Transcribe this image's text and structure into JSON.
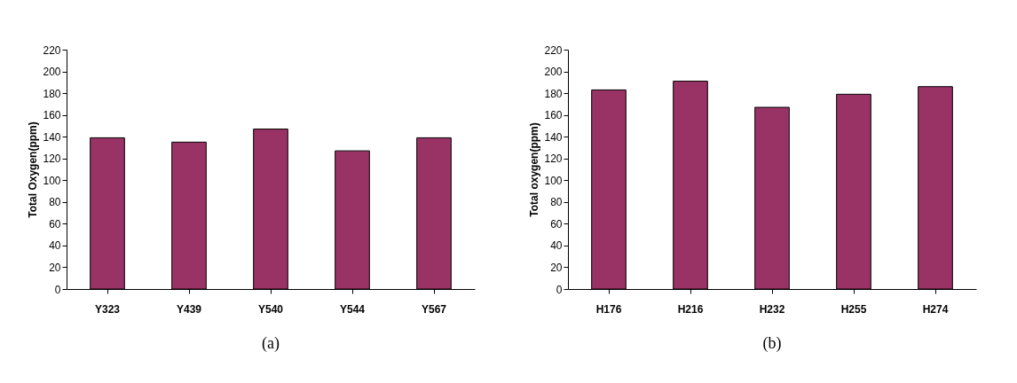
{
  "chart_data": [
    {
      "type": "bar",
      "ylabel": "Total Oxygen(ppm)",
      "categories": [
        "Y323",
        "Y439",
        "Y540",
        "Y544",
        "Y567"
      ],
      "values": [
        139,
        135,
        147,
        127,
        139
      ],
      "color": "#993366",
      "ylim": [
        0,
        220
      ],
      "yticks": [
        0,
        20,
        40,
        60,
        80,
        100,
        120,
        140,
        160,
        180,
        200,
        220
      ],
      "grid": false,
      "annotations": [
        "(a)"
      ]
    },
    {
      "type": "bar",
      "ylabel": "Total oxygen(ppm)",
      "categories": [
        "H176",
        "H216",
        "H232",
        "H255",
        "H274"
      ],
      "values": [
        183,
        191,
        167,
        179,
        186
      ],
      "color": "#993366",
      "ylim": [
        0,
        220
      ],
      "yticks": [
        0,
        20,
        40,
        60,
        80,
        100,
        120,
        140,
        160,
        180,
        200,
        220
      ],
      "grid": false,
      "annotations": [
        "(b)"
      ]
    }
  ]
}
